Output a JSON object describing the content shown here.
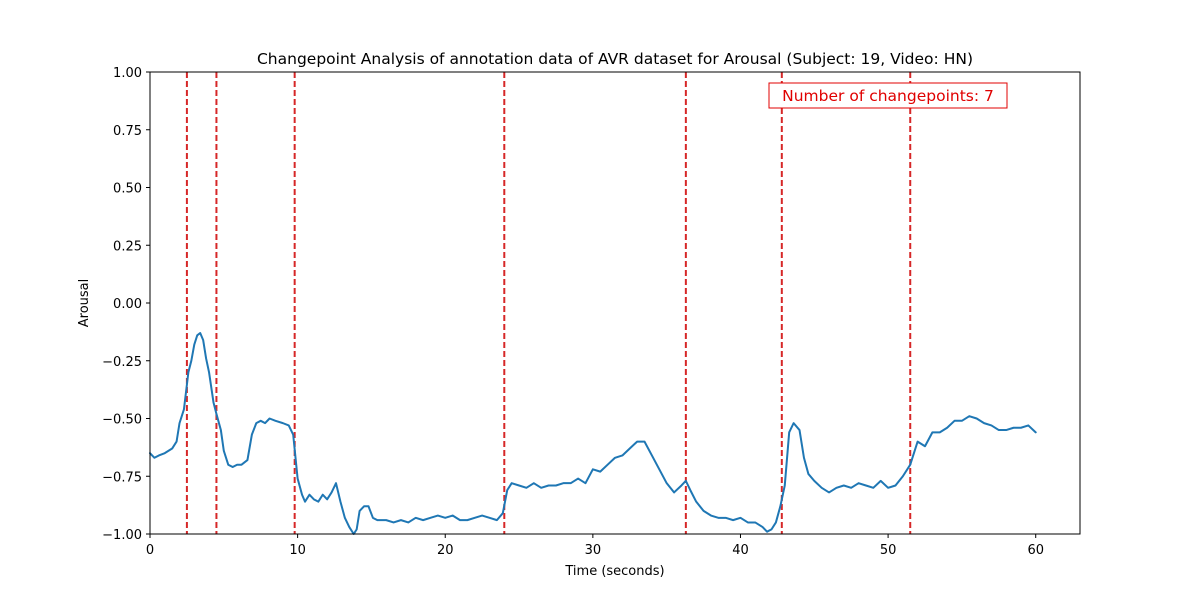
{
  "chart_data": {
    "type": "line",
    "title": "Changepoint Analysis of annotation data of AVR dataset for Arousal (Subject: 19, Video: HN)",
    "xlabel": "Time (seconds)",
    "ylabel": "Arousal",
    "xlim": [
      0,
      63
    ],
    "ylim": [
      -1.0,
      1.0
    ],
    "x_ticks": [
      0,
      10,
      20,
      30,
      40,
      50,
      60
    ],
    "x_tick_labels": [
      "0",
      "10",
      "20",
      "30",
      "40",
      "50",
      "60"
    ],
    "y_ticks": [
      1.0,
      0.75,
      0.5,
      0.25,
      0.0,
      -0.25,
      -0.5,
      -0.75,
      -1.0
    ],
    "y_tick_labels": [
      "1.00",
      "0.75",
      "0.50",
      "0.25",
      "0.00",
      "−0.25",
      "−0.50",
      "−0.75",
      "−1.00"
    ],
    "grid": false,
    "colors": {
      "series": "#1f77b4",
      "changepoint": "#d62728",
      "annotation": "#e00000"
    },
    "series": [
      {
        "x": [
          0,
          0.3,
          0.6,
          1.0,
          1.5,
          1.8,
          2.0,
          2.3,
          2.6,
          2.8,
          3.0,
          3.2,
          3.4,
          3.6,
          3.8,
          4.0,
          4.3,
          4.5,
          4.8,
          5.0,
          5.3,
          5.6,
          5.9,
          6.2,
          6.6,
          6.9,
          7.2,
          7.5,
          7.8,
          8.1,
          8.5,
          9.0,
          9.4,
          9.7,
          10.0,
          10.3,
          10.5,
          10.8,
          11.1,
          11.4,
          11.7,
          12.0,
          12.3,
          12.6,
          12.9,
          13.2,
          13.5,
          13.8,
          14.0,
          14.2,
          14.5,
          14.8,
          15.1,
          15.4,
          15.7,
          16.0,
          16.5,
          17.0,
          17.5,
          18.0,
          18.5,
          19.0,
          19.5,
          20.0,
          20.5,
          21.0,
          21.5,
          22.0,
          22.5,
          23.0,
          23.5,
          23.9,
          24.2,
          24.5,
          25.0,
          25.5,
          26.0,
          26.5,
          27.0,
          27.5,
          28.0,
          28.5,
          29.0,
          29.5,
          30.0,
          30.5,
          31.0,
          31.5,
          32.0,
          32.5,
          33.0,
          33.5,
          34.0,
          34.5,
          35.0,
          35.5,
          36.0,
          36.3,
          36.6,
          37.0,
          37.5,
          38.0,
          38.5,
          39.0,
          39.5,
          40.0,
          40.5,
          41.0,
          41.5,
          41.8,
          42.1,
          42.4,
          42.7,
          43.0,
          43.3,
          43.6,
          44.0,
          44.3,
          44.6,
          45.0,
          45.5,
          46.0,
          46.5,
          47.0,
          47.5,
          48.0,
          48.5,
          49.0,
          49.5,
          50.0,
          50.5,
          51.0,
          51.5,
          52.0,
          52.5,
          53.0,
          53.5,
          54.0,
          54.5,
          55.0,
          55.5,
          56.0,
          56.5,
          57.0,
          57.5,
          58.0,
          58.5,
          59.0,
          59.5,
          60.0
        ],
        "y": [
          -0.65,
          -0.67,
          -0.66,
          -0.65,
          -0.63,
          -0.6,
          -0.52,
          -0.46,
          -0.3,
          -0.25,
          -0.18,
          -0.14,
          -0.13,
          -0.16,
          -0.24,
          -0.3,
          -0.43,
          -0.48,
          -0.55,
          -0.64,
          -0.7,
          -0.71,
          -0.7,
          -0.7,
          -0.68,
          -0.57,
          -0.52,
          -0.51,
          -0.52,
          -0.5,
          -0.51,
          -0.52,
          -0.53,
          -0.57,
          -0.76,
          -0.83,
          -0.86,
          -0.83,
          -0.85,
          -0.86,
          -0.83,
          -0.85,
          -0.82,
          -0.78,
          -0.86,
          -0.93,
          -0.97,
          -1.0,
          -0.98,
          -0.9,
          -0.88,
          -0.88,
          -0.93,
          -0.94,
          -0.94,
          -0.94,
          -0.95,
          -0.94,
          -0.95,
          -0.93,
          -0.94,
          -0.93,
          -0.92,
          -0.93,
          -0.92,
          -0.94,
          -0.94,
          -0.93,
          -0.92,
          -0.93,
          -0.94,
          -0.91,
          -0.81,
          -0.78,
          -0.79,
          -0.8,
          -0.78,
          -0.8,
          -0.79,
          -0.79,
          -0.78,
          -0.78,
          -0.76,
          -0.78,
          -0.72,
          -0.73,
          -0.7,
          -0.67,
          -0.66,
          -0.63,
          -0.6,
          -0.6,
          -0.66,
          -0.72,
          -0.78,
          -0.82,
          -0.79,
          -0.77,
          -0.81,
          -0.86,
          -0.9,
          -0.92,
          -0.93,
          -0.93,
          -0.94,
          -0.93,
          -0.95,
          -0.95,
          -0.97,
          -0.99,
          -0.98,
          -0.95,
          -0.88,
          -0.79,
          -0.56,
          -0.52,
          -0.55,
          -0.67,
          -0.74,
          -0.77,
          -0.8,
          -0.82,
          -0.8,
          -0.79,
          -0.8,
          -0.78,
          -0.79,
          -0.8,
          -0.77,
          -0.8,
          -0.79,
          -0.75,
          -0.7,
          -0.6,
          -0.62,
          -0.56,
          -0.56,
          -0.54,
          -0.51,
          -0.51,
          -0.49,
          -0.5,
          -0.52,
          -0.53,
          -0.55,
          -0.55,
          -0.54,
          -0.54,
          -0.53,
          -0.56
        ]
      }
    ],
    "changepoints": [
      2.5,
      4.5,
      9.8,
      24.0,
      36.3,
      42.8,
      51.5
    ],
    "annotation": "Number of changepoints: 7"
  }
}
